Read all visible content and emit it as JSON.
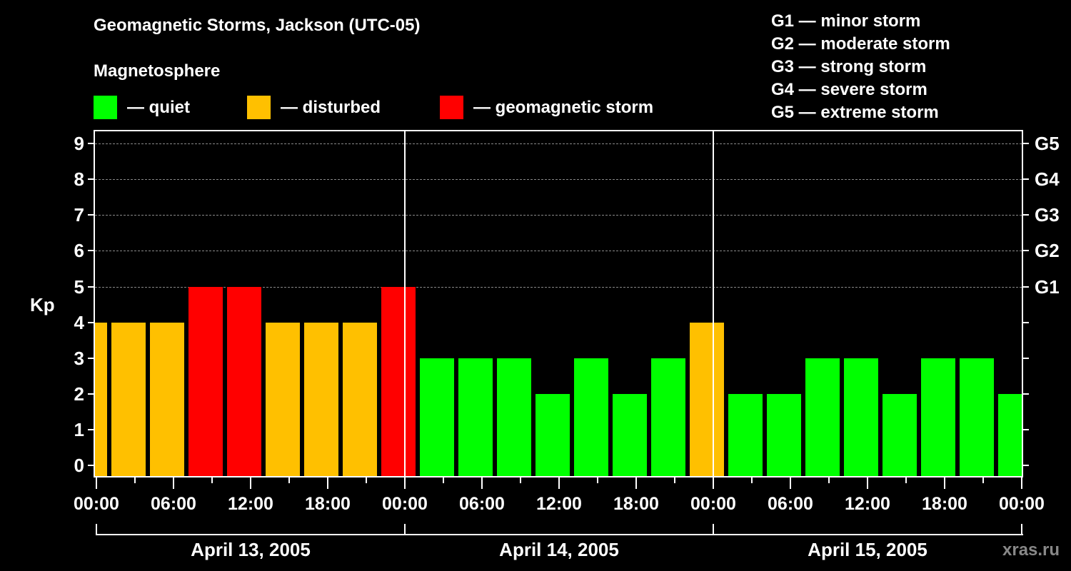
{
  "chart_data": {
    "type": "bar",
    "title": "Geomagnetic Storms, Jackson (UTC-05)",
    "subtitle": "Magnetosphere",
    "ylabel": "Kp",
    "ylim": [
      0,
      9
    ],
    "yticks": [
      "0",
      "1",
      "2",
      "3",
      "4",
      "5",
      "6",
      "7",
      "8",
      "9"
    ],
    "right_ticks": [
      {
        "kp": 5,
        "label": "G1"
      },
      {
        "kp": 6,
        "label": "G2"
      },
      {
        "kp": 7,
        "label": "G3"
      },
      {
        "kp": 8,
        "label": "G4"
      },
      {
        "kp": 9,
        "label": "G5"
      }
    ],
    "grid": "dashed horizontal at Kp 5-9",
    "xtick_labels": [
      "00:00",
      "06:00",
      "12:00",
      "18:00",
      "00:00",
      "06:00",
      "12:00",
      "18:00",
      "00:00",
      "06:00",
      "12:00",
      "18:00",
      "00:00"
    ],
    "days": [
      "April 13, 2005",
      "April 14, 2005",
      "April 15, 2005"
    ],
    "interval_hours": 3,
    "values": [
      4,
      4,
      4,
      5,
      5,
      4,
      4,
      4,
      5,
      3,
      3,
      3,
      2,
      3,
      2,
      3,
      4,
      2,
      2,
      3,
      3,
      2,
      3,
      3,
      2
    ],
    "categories": [
      "quiet",
      "disturbed",
      "storm"
    ],
    "bar_classes": [
      "disturbed",
      "disturbed",
      "disturbed",
      "storm",
      "storm",
      "disturbed",
      "disturbed",
      "disturbed",
      "storm",
      "quiet",
      "quiet",
      "quiet",
      "quiet",
      "quiet",
      "quiet",
      "quiet",
      "disturbed",
      "quiet",
      "quiet",
      "quiet",
      "quiet",
      "quiet",
      "quiet",
      "quiet",
      "quiet"
    ],
    "legend": [
      {
        "label": "— quiet",
        "color": "#00ff00"
      },
      {
        "label": "— disturbed",
        "color": "#ffc000"
      },
      {
        "label": "— geomagnetic storm",
        "color": "#ff0000"
      }
    ]
  },
  "header": {
    "title": "Geomagnetic Storms, Jackson (UTC-05)",
    "subtitle": "Magnetosphere"
  },
  "legend": {
    "quiet": "— quiet",
    "disturbed": "— disturbed",
    "storm": "— geomagnetic storm"
  },
  "colors": {
    "quiet": "#00ff00",
    "disturbed": "#ffc000",
    "storm": "#ff0000"
  },
  "g_scale": [
    "G1 — minor storm",
    "G2 — moderate storm",
    "G3 — strong storm",
    "G4 — severe storm",
    "G5 — extreme storm"
  ],
  "axis": {
    "ylabel": "Kp"
  },
  "watermark": "xras.ru"
}
